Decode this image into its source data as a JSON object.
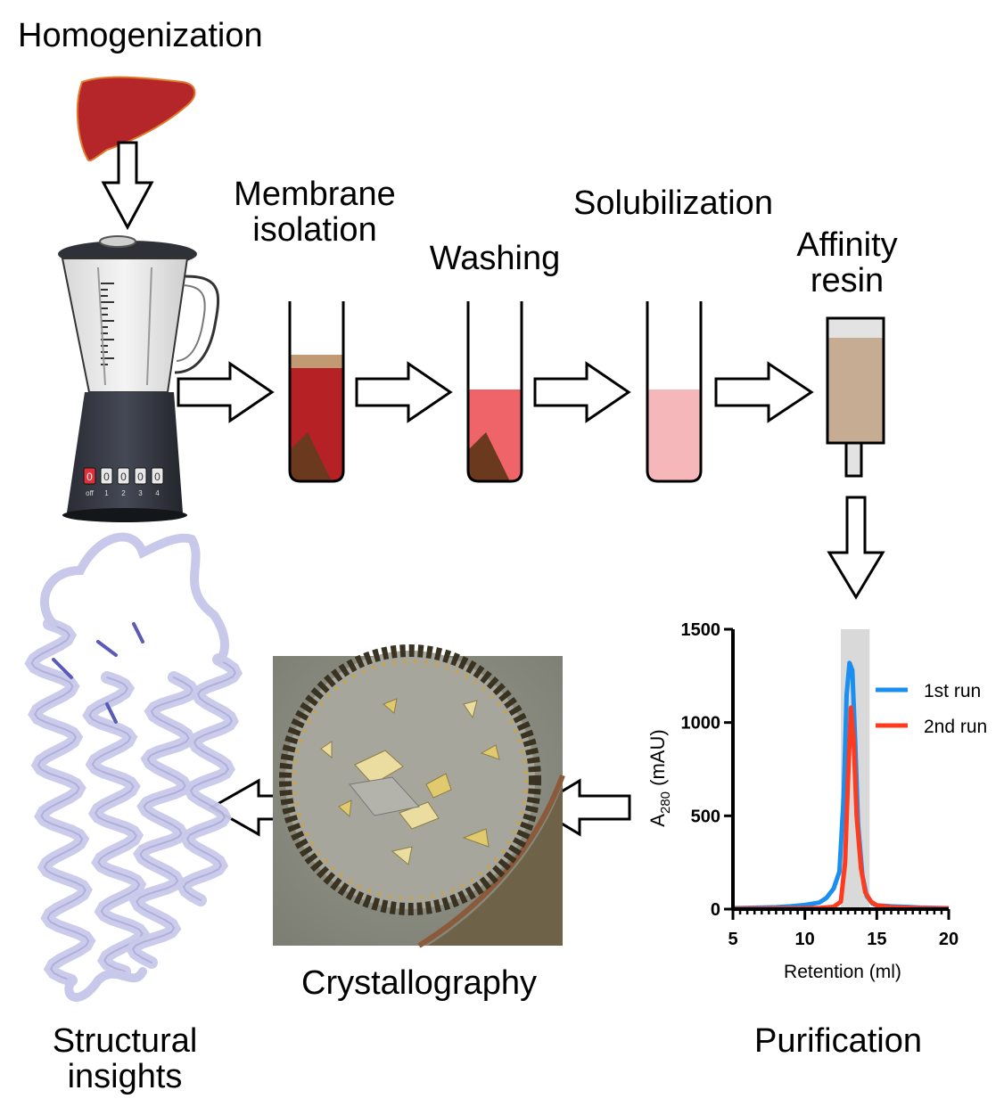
{
  "labels": {
    "homogenization": "Homogenization",
    "membrane_line1": "Membrane",
    "membrane_line2": "isolation",
    "washing": "Washing",
    "solubilization": "Solubilization",
    "affinity_line1": "Affinity",
    "affinity_line2": "resin",
    "purification": "Purification",
    "crystallography": "Crystallography",
    "structural_line1": "Structural",
    "structural_line2": "insights"
  },
  "blender": {
    "switch_labels": [
      "off",
      "1",
      "2",
      "3",
      "4"
    ],
    "active_switch_text": "0"
  },
  "colors": {
    "liver": "#b5262a",
    "pellet": "#6b3a1e",
    "tube1_fill": "#b62126",
    "tube1_top": "#c19a73",
    "tube2_fill": "#ef6468",
    "tube3_fill": "#f5b7b9",
    "resin": "#c6ac92",
    "protein": "#c8c8ea",
    "run1": "#1a8ff0",
    "run2": "#ff3b1f",
    "shade": "#d9d9d9"
  },
  "chart_data": {
    "type": "line",
    "xlabel": "Retention (ml)",
    "ylabel": "A280 (mAU)",
    "ylabel_main": "A",
    "ylabel_sub": "280",
    "ylabel_unit": " (mAU)",
    "xlim": [
      5,
      20
    ],
    "ylim": [
      0,
      1500
    ],
    "xticks": [
      5,
      10,
      15,
      20
    ],
    "yticks": [
      0,
      500,
      1000,
      1500
    ],
    "shaded_region": [
      12.5,
      14.5
    ],
    "legend_position": "top-right",
    "series": [
      {
        "name": "1st run",
        "color": "#1a8ff0",
        "x": [
          5,
          7,
          8,
          9,
          10,
          11,
          11.5,
          12,
          12.4,
          12.7,
          12.9,
          13.1,
          13.3,
          13.5,
          13.7,
          14,
          14.3,
          14.7,
          15,
          16,
          17,
          18,
          20
        ],
        "y": [
          5,
          8,
          10,
          15,
          22,
          35,
          60,
          110,
          200,
          600,
          1150,
          1320,
          1280,
          900,
          450,
          180,
          70,
          30,
          20,
          15,
          12,
          8,
          5
        ]
      },
      {
        "name": "2nd run",
        "color": "#ff3b1f",
        "x": [
          5,
          8,
          10,
          11,
          12,
          12.5,
          12.8,
          13,
          13.2,
          13.4,
          13.6,
          13.9,
          14.2,
          14.6,
          15,
          16,
          18,
          20
        ],
        "y": [
          2,
          3,
          4,
          6,
          12,
          40,
          250,
          700,
          1080,
          900,
          500,
          220,
          90,
          40,
          20,
          10,
          5,
          3
        ]
      }
    ]
  }
}
